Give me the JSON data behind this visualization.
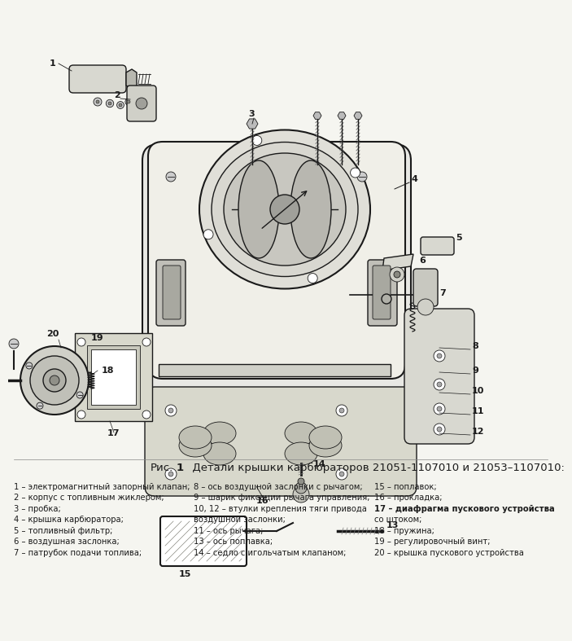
{
  "background_color": "#f5f5f0",
  "fig_width": 6.7,
  "fig_height": 7.68,
  "caption_bold": "Рис. 1",
  "caption_rest": "  Детали крышки карбюраторов 21051-1107010 и 21053–1107010:",
  "legend_col1": [
    "1 – электромагнитный запорный клапан;",
    "2 – корпус с топливным жиклером;",
    "3 – пробка;",
    "4 – крышка карбюратора;",
    "5 – топливный фильтр;",
    "6 – воздушная заслонка;",
    "7 – патрубок подачи топлива;"
  ],
  "legend_col2": [
    "8 – ось воздушной заслонки с рычагом;",
    "9 – шарик фиксации рычага управления;",
    "10, 12 – втулки крепления тяги привода",
    "воздушной заслонки;",
    "11 – ось рычага;",
    "13 – ось поплавка;",
    "14 – седло с игольчатым клапаном;"
  ],
  "legend_col3": [
    "15 – поплавок;",
    "16 – прокладка;",
    "17 – диафрагма пускового устройства",
    "со штоком;",
    "18 – пружина;",
    "19 – регулировочный винт;",
    "20 – крышка пускового устройства"
  ],
  "col3_bold_line": "17 – диафрагма пускового устройства"
}
